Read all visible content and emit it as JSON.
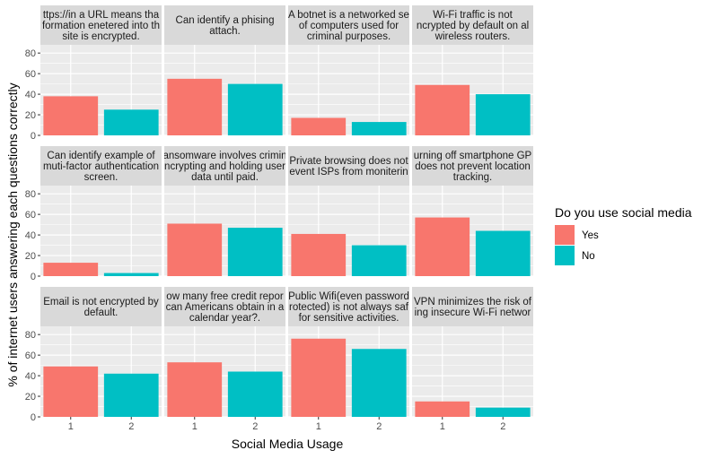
{
  "chart_data": {
    "type": "bar",
    "facet_layout": "4 columns x 3 rows",
    "xlabel": "Social Media Usage",
    "ylabel": "% of internet users answering each questions correctly",
    "categories": [
      "1",
      "2"
    ],
    "ylim": [
      0,
      88
    ],
    "yticks": [
      0,
      20,
      40,
      60,
      80
    ],
    "grid": true,
    "legend": {
      "title": "Do you use social media",
      "placement": "right",
      "entries": [
        {
          "label": "Yes",
          "color": "#F8766D"
        },
        {
          "label": "No",
          "color": "#00BFC4"
        }
      ]
    },
    "panels": [
      {
        "strip": [
          "ttps://in a URL means tha",
          "formation enetered into th",
          "site is encrypted."
        ],
        "values": [
          38,
          25
        ]
      },
      {
        "strip": [
          "Can identify a phising",
          "attach."
        ],
        "values": [
          55,
          50
        ]
      },
      {
        "strip": [
          "A botnet is a networked se",
          "of computers used for",
          "criminal purposes."
        ],
        "values": [
          17,
          13
        ]
      },
      {
        "strip": [
          "Wi-Fi traffic is not",
          "ncrypted by default on al",
          "wireless routers."
        ],
        "values": [
          49,
          40
        ]
      },
      {
        "strip": [
          "Can identify example of",
          "muti-factor authentication",
          "screen."
        ],
        "values": [
          13,
          3
        ]
      },
      {
        "strip": [
          "ansomware involves crimin",
          "ncrypting and holding user",
          "data until paid."
        ],
        "values": [
          51,
          47
        ]
      },
      {
        "strip": [
          "Private browsing does not",
          "event ISPs from moniterin"
        ],
        "values": [
          41,
          30
        ]
      },
      {
        "strip": [
          "urning off smartphone GP",
          "does not prevent location",
          "tracking."
        ],
        "values": [
          57,
          44
        ]
      },
      {
        "strip": [
          "Email is not encrypted by",
          "default."
        ],
        "values": [
          49,
          42
        ]
      },
      {
        "strip": [
          "ow many free credit repor",
          "can Americans obtain in a",
          "calendar year?."
        ],
        "values": [
          53,
          44
        ]
      },
      {
        "strip": [
          "Public Wifi(even password",
          "rotected) is not always saf",
          "for sensitive activities."
        ],
        "values": [
          76,
          66
        ]
      },
      {
        "strip": [
          "VPN minimizes the risk of",
          "ing insecure Wi-Fi networ"
        ],
        "values": [
          15,
          9
        ]
      }
    ]
  }
}
